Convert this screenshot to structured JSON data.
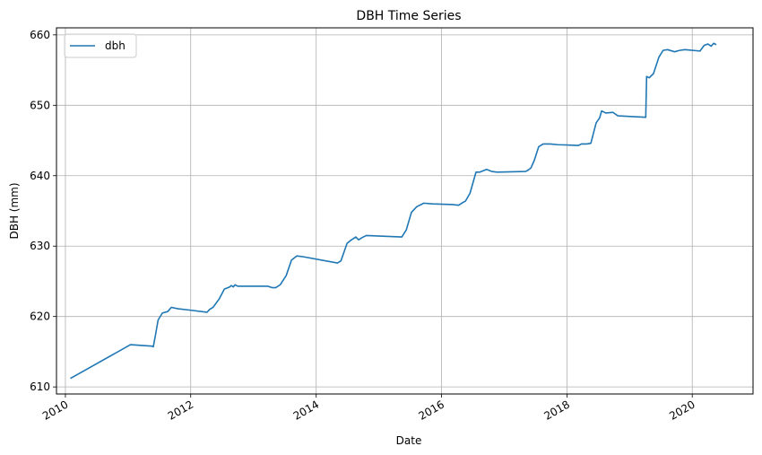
{
  "chart_data": {
    "type": "line",
    "title": "DBH Time Series",
    "xlabel": "Date",
    "ylabel": "DBH (mm)",
    "xlim": [
      "2009-11-10",
      "2020-12-20"
    ],
    "ylim": [
      609,
      661
    ],
    "x_ticks": [
      "2010",
      "2012",
      "2014",
      "2016",
      "2018",
      "2020"
    ],
    "y_ticks": [
      610,
      620,
      630,
      640,
      650,
      660
    ],
    "grid": true,
    "legend": {
      "position": "top-left",
      "entries": [
        "dbh"
      ]
    },
    "colors": {
      "dbh": "#1f77b4"
    },
    "series": [
      {
        "name": "dbh",
        "x": [
          "2010-01-30",
          "2011-01-15",
          "2011-05-20",
          "2011-05-28",
          "2011-06-10",
          "2011-06-25",
          "2011-07-20",
          "2011-08-20",
          "2011-09-10",
          "2011-10-20",
          "2011-12-30",
          "2012-04-05",
          "2012-04-20",
          "2012-05-10",
          "2012-06-15",
          "2012-07-15",
          "2012-08-15",
          "2012-08-25",
          "2012-09-05",
          "2012-09-15",
          "2012-10-01",
          "2013-03-25",
          "2013-04-20",
          "2013-05-10",
          "2013-06-05",
          "2013-07-10",
          "2013-08-10",
          "2013-09-10",
          "2013-10-15",
          "2014-05-05",
          "2014-05-25",
          "2014-06-30",
          "2014-07-20",
          "2014-08-20",
          "2014-09-05",
          "2014-09-25",
          "2014-10-20",
          "2015-05-15",
          "2015-06-10",
          "2015-07-10",
          "2015-08-10",
          "2015-09-20",
          "2015-11-10",
          "2016-03-05",
          "2016-04-10",
          "2016-05-05",
          "2016-05-20",
          "2016-06-15",
          "2016-07-20",
          "2016-08-10",
          "2016-09-20",
          "2016-10-20",
          "2016-11-20",
          "2017-05-05",
          "2017-05-20",
          "2017-06-05",
          "2017-06-25",
          "2017-07-20",
          "2017-08-15",
          "2017-09-25",
          "2017-11-10",
          "2018-03-10",
          "2018-03-25",
          "2018-04-25",
          "2018-05-20",
          "2018-06-20",
          "2018-07-10",
          "2018-07-22",
          "2018-08-15",
          "2018-09-25",
          "2018-10-25",
          "2019-04-05",
          "2019-04-10",
          "2019-04-25",
          "2019-05-20",
          "2019-06-20",
          "2019-07-15",
          "2019-08-10",
          "2019-09-20",
          "2019-10-20",
          "2019-11-20",
          "2020-02-15",
          "2020-03-10",
          "2020-04-01",
          "2020-04-20",
          "2020-05-05",
          "2020-05-20"
        ],
        "y": [
          611.2,
          616.0,
          615.8,
          615.7,
          617.4,
          619.5,
          620.5,
          620.7,
          621.3,
          621.1,
          620.9,
          620.6,
          621.0,
          621.3,
          622.5,
          623.9,
          624.2,
          624.4,
          624.2,
          624.5,
          624.3,
          624.3,
          624.1,
          624.1,
          624.5,
          625.8,
          628.0,
          628.6,
          628.5,
          627.6,
          627.9,
          630.4,
          630.8,
          631.3,
          630.9,
          631.2,
          631.5,
          631.3,
          632.3,
          634.8,
          635.6,
          636.1,
          636.0,
          635.9,
          635.8,
          636.2,
          636.4,
          637.5,
          640.5,
          640.5,
          640.9,
          640.6,
          640.5,
          640.6,
          640.8,
          641.1,
          642.2,
          644.1,
          644.5,
          644.5,
          644.4,
          644.3,
          644.5,
          644.5,
          644.6,
          647.5,
          648.2,
          649.2,
          648.9,
          649.0,
          648.5,
          648.3,
          654.1,
          653.9,
          654.5,
          656.8,
          657.8,
          657.9,
          657.6,
          657.8,
          657.9,
          657.7,
          658.5,
          658.7,
          658.4,
          658.8,
          658.6
        ]
      }
    ]
  }
}
